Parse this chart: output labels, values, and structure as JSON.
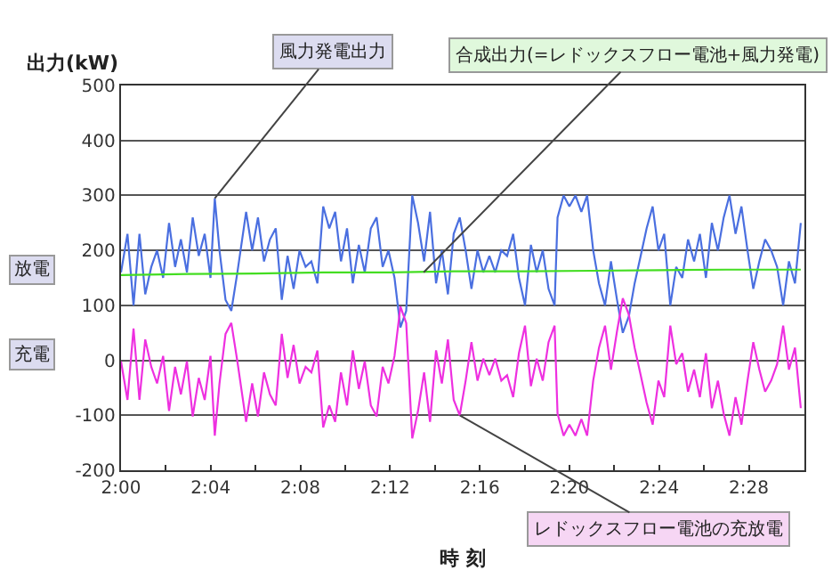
{
  "chart_data": {
    "type": "line",
    "xlabel": "時 刻",
    "ylabel": "出力(kW)",
    "xlim": [
      2.0,
      2.508
    ],
    "ylim": [
      -200,
      500
    ],
    "xticks": [
      {
        "value": 2.0,
        "label": "2:00"
      },
      {
        "value": 2.0333,
        "label": null
      },
      {
        "value": 2.0667,
        "label": "2:04"
      },
      {
        "value": 2.1,
        "label": null
      },
      {
        "value": 2.1333,
        "label": "2:08"
      },
      {
        "value": 2.1667,
        "label": null
      },
      {
        "value": 2.2,
        "label": "2:12"
      },
      {
        "value": 2.2333,
        "label": null
      },
      {
        "value": 2.2667,
        "label": "2:16"
      },
      {
        "value": 2.3,
        "label": null
      },
      {
        "value": 2.3333,
        "label": "2:20"
      },
      {
        "value": 2.3667,
        "label": null
      },
      {
        "value": 2.4,
        "label": "2:24"
      },
      {
        "value": 2.4333,
        "label": null
      },
      {
        "value": 2.4667,
        "label": "2:28"
      }
    ],
    "yticks": [
      -200,
      -100,
      0,
      100,
      200,
      300,
      400,
      500
    ],
    "grid": "y",
    "marker": "none",
    "line_style": "solid",
    "x": [
      2.0,
      2.0048,
      2.0093,
      2.0137,
      2.018,
      2.0225,
      2.0268,
      2.0313,
      2.0357,
      2.0402,
      2.0445,
      2.049,
      2.0533,
      2.0578,
      2.0622,
      2.0665,
      2.0697,
      2.0732,
      2.0777,
      2.082,
      2.0865,
      2.093,
      2.0975,
      2.1018,
      2.1063,
      2.1107,
      2.115,
      2.1195,
      2.1238,
      2.1283,
      2.1327,
      2.1372,
      2.1415,
      2.146,
      2.1503,
      2.1548,
      2.1592,
      2.1635,
      2.168,
      2.1723,
      2.1768,
      2.1812,
      2.1857,
      2.19,
      2.1945,
      2.1988,
      2.2033,
      2.2077,
      2.212,
      2.2165,
      2.2208,
      2.2253,
      2.2297,
      2.2342,
      2.2385,
      2.243,
      2.2473,
      2.2518,
      2.2562,
      2.2605,
      2.265,
      2.2693,
      2.2738,
      2.2782,
      2.2827,
      2.287,
      2.2915,
      2.2958,
      2.3003,
      2.3047,
      2.309,
      2.3135,
      2.3178,
      2.3223,
      2.3245,
      2.329,
      2.3333,
      2.3378,
      2.3422,
      2.3465,
      2.351,
      2.3553,
      2.3598,
      2.3642,
      2.3687,
      2.373,
      2.3775,
      2.3818,
      2.3863,
      2.3907,
      2.3952,
      2.3995,
      2.4038,
      2.4083,
      2.4127,
      2.4172,
      2.4215,
      2.426,
      2.4303,
      2.4348,
      2.4392,
      2.4437,
      2.448,
      2.4523,
      2.4568,
      2.4612,
      2.4657,
      2.47,
      2.4745,
      2.4788,
      2.4833,
      2.4877,
      2.4922,
      2.4965,
      2.501,
      2.5053
    ],
    "series": [
      {
        "color": "#4a6fe0",
        "values": [
          160,
          230,
          100,
          230,
          120,
          170,
          200,
          150,
          250,
          170,
          220,
          160,
          260,
          190,
          230,
          150,
          295,
          200,
          110,
          90,
          160,
          270,
          200,
          260,
          180,
          220,
          240,
          110,
          190,
          130,
          200,
          170,
          180,
          140,
          280,
          240,
          270,
          180,
          240,
          140,
          210,
          160,
          240,
          260,
          170,
          200,
          150,
          60,
          90,
          300,
          250,
          180,
          270,
          140,
          200,
          120,
          230,
          260,
          200,
          130,
          200,
          160,
          190,
          160,
          200,
          190,
          230,
          150,
          100,
          210,
          160,
          200,
          130,
          100,
          260,
          300,
          280,
          300,
          270,
          300,
          200,
          140,
          100,
          180,
          110,
          50,
          80,
          140,
          190,
          240,
          280,
          200,
          230,
          100,
          170,
          150,
          220,
          180,
          230,
          150,
          250,
          200,
          260,
          300,
          230,
          280,
          200,
          130,
          180,
          220,
          200,
          170,
          100,
          180,
          140,
          250
        ]
      },
      {
        "color": "#ee30e0",
        "values": [
          -2,
          -72,
          58,
          -72,
          38,
          -12,
          -42,
          8,
          -92,
          -12,
          -62,
          -2,
          -102,
          -32,
          -72,
          8,
          -137,
          -42,
          48,
          68,
          -2,
          -112,
          -42,
          -102,
          -22,
          -62,
          -82,
          48,
          -32,
          28,
          -42,
          -12,
          -22,
          18,
          -122,
          -82,
          -112,
          -22,
          -82,
          18,
          -52,
          -2,
          -82,
          -102,
          -12,
          -42,
          8,
          98,
          68,
          -142,
          -92,
          -22,
          -112,
          18,
          -42,
          38,
          -72,
          -100,
          -37,
          33,
          -37,
          3,
          -27,
          3,
          -37,
          -27,
          -67,
          13,
          63,
          -47,
          3,
          -37,
          33,
          63,
          -97,
          -137,
          -117,
          -137,
          -107,
          -137,
          -37,
          23,
          63,
          -17,
          53,
          113,
          83,
          23,
          -27,
          -77,
          -117,
          -37,
          -67,
          63,
          -7,
          13,
          -57,
          -17,
          -67,
          13,
          -87,
          -37,
          -97,
          -137,
          -67,
          -117,
          -37,
          33,
          -17,
          -57,
          -37,
          -7,
          63,
          -17,
          23,
          -87
        ]
      },
      {
        "color": "#44dd22",
        "x": [
          2.0,
          2.05,
          2.1,
          2.15,
          2.2,
          2.25,
          2.3,
          2.35,
          2.4,
          2.45,
          2.5053
        ],
        "values": [
          155,
          157,
          158,
          160,
          160,
          162,
          162,
          163,
          164,
          165,
          165
        ]
      }
    ],
    "annotations": [
      {
        "text": "風力発電出力",
        "x": 2.0697,
        "y": 295
      },
      {
        "text": "合成出力(=レドックスフロー電池+風力発電)",
        "x": 2.225,
        "y": 160
      },
      {
        "text": "レドックスフロー電池の充放電",
        "x": 2.2518,
        "y": -100
      },
      "放電",
      "充電"
    ]
  }
}
